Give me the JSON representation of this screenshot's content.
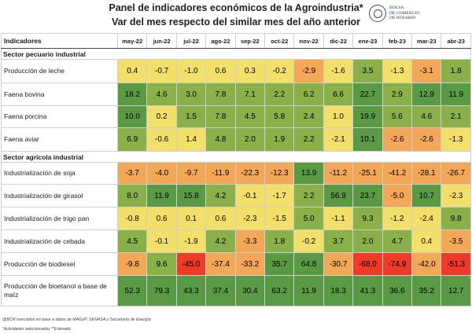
{
  "header": {
    "title": "Panel de indicadores económicos de la Agroindustria*",
    "subtitle": "Var del mes respecto del similar mes del año anterior",
    "logo_text": [
      "BOLSA",
      "DE COMERCIO",
      "DE ROSARIO"
    ]
  },
  "table": {
    "label_header": "Indicadores",
    "months": [
      "may-22",
      "jun-22",
      "jul-22",
      "ago-22",
      "sep-22",
      "oct-22",
      "nov-22",
      "dic-22",
      "ene-23",
      "feb-23",
      "mar-23",
      "abr-23"
    ],
    "sections": [
      {
        "title": "Sector pecuario industrial",
        "rows": [
          {
            "label": "Producción de leche",
            "values": [
              "0.4",
              "-0.7",
              "-1.0",
              "0.6",
              "0.3",
              "-0.2",
              "-2.9",
              "-1.6",
              "3.5",
              "-1.3",
              "-3.1",
              "1.8"
            ]
          },
          {
            "label": "Faena bovina",
            "values": [
              "18.2",
              "4.6",
              "3.0",
              "7.8",
              "7.1",
              "2.2",
              "6.2",
              "6.6",
              "22.7",
              "2.9",
              "12.9",
              "11.9"
            ]
          },
          {
            "label": "Faena porcina",
            "values": [
              "10.0",
              "0.2",
              "1.5",
              "7.8",
              "4.5",
              "5.8",
              "2.4",
              "1.0",
              "19.9",
              "5.6",
              "4.6",
              "2.1"
            ]
          },
          {
            "label": "Faena aviar",
            "values": [
              "6.9",
              "-0.6",
              "1.4",
              "4.8",
              "2.0",
              "1.9",
              "2.2",
              "-2.1",
              "10.1",
              "-2.6",
              "-2.6",
              "-1.3"
            ]
          }
        ]
      },
      {
        "title": "Sector agrícola industrial",
        "rows": [
          {
            "label": "Industrialización de soja",
            "values": [
              "-3.7",
              "-4.0",
              "-9.7",
              "-11.9",
              "-22.3",
              "-12.3",
              "13.9",
              "-11.2",
              "-25.1",
              "-41.2",
              "-28.1",
              "-26.7"
            ]
          },
          {
            "label": "Industrialización de girasol",
            "values": [
              "8.0",
              "11.9",
              "15.8",
              "4.2",
              "-0.1",
              "-1.7",
              "2.2",
              "56.9",
              "23.7",
              "-5.0",
              "10.7",
              "-2.3"
            ]
          },
          {
            "label": "Industrialización de trigo pan",
            "values": [
              "-0.8",
              "0.6",
              "0.1",
              "0.6",
              "-2.3",
              "-1.5",
              "5.0",
              "-1.1",
              "9.3",
              "-1.2",
              "-2.4",
              "9.8"
            ]
          },
          {
            "label": "Industrialización de cebada",
            "values": [
              "4.5",
              "-0.1",
              "-1.9",
              "4.2",
              "-3.3",
              "1.8",
              "-0.2",
              "3.7",
              "2.0",
              "4.7",
              "0.4",
              "-3.5"
            ]
          },
          {
            "label": "Producción de biodiesel",
            "values": [
              "-9.8",
              "9.6",
              "-45.0",
              "-37.4",
              "-33.2",
              "35.7",
              "64.8",
              "-30.7",
              "-68.0",
              "-74.9",
              "-42.0",
              "-51.3"
            ]
          },
          {
            "label": "Producción de bioetanol a base de maíz",
            "values": [
              "52.3",
              "79.3",
              "43.3",
              "37.4",
              "30.4",
              "63.2",
              "11.9",
              "18.3",
              "41.3",
              "36.6",
              "35.2",
              "12.7"
            ]
          }
        ]
      }
    ]
  },
  "footer": {
    "source": "@BCR mercados en base a datos de MAGyP, SENASA y Secretaría de Energía.",
    "note": "*Actividades seleccionadas  **Estimado"
  },
  "colors": {
    "strong_positive": "#5a9a45",
    "positive": "#8ab04a",
    "neutral": "#f3e06a",
    "negative": "#f3a858",
    "strong_negative": "#ee3a28"
  }
}
